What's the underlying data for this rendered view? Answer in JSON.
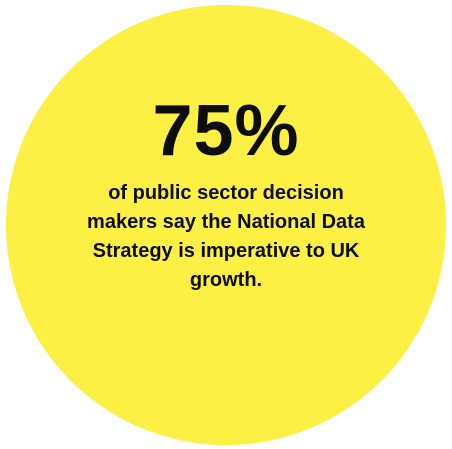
{
  "stat": {
    "value": "75%",
    "caption": "of public sector decision makers say the National Data Strategy is imperative to UK growth."
  },
  "colors": {
    "circle": "#fbf043",
    "text": "#0d0d0d",
    "background": "#ffffff"
  }
}
